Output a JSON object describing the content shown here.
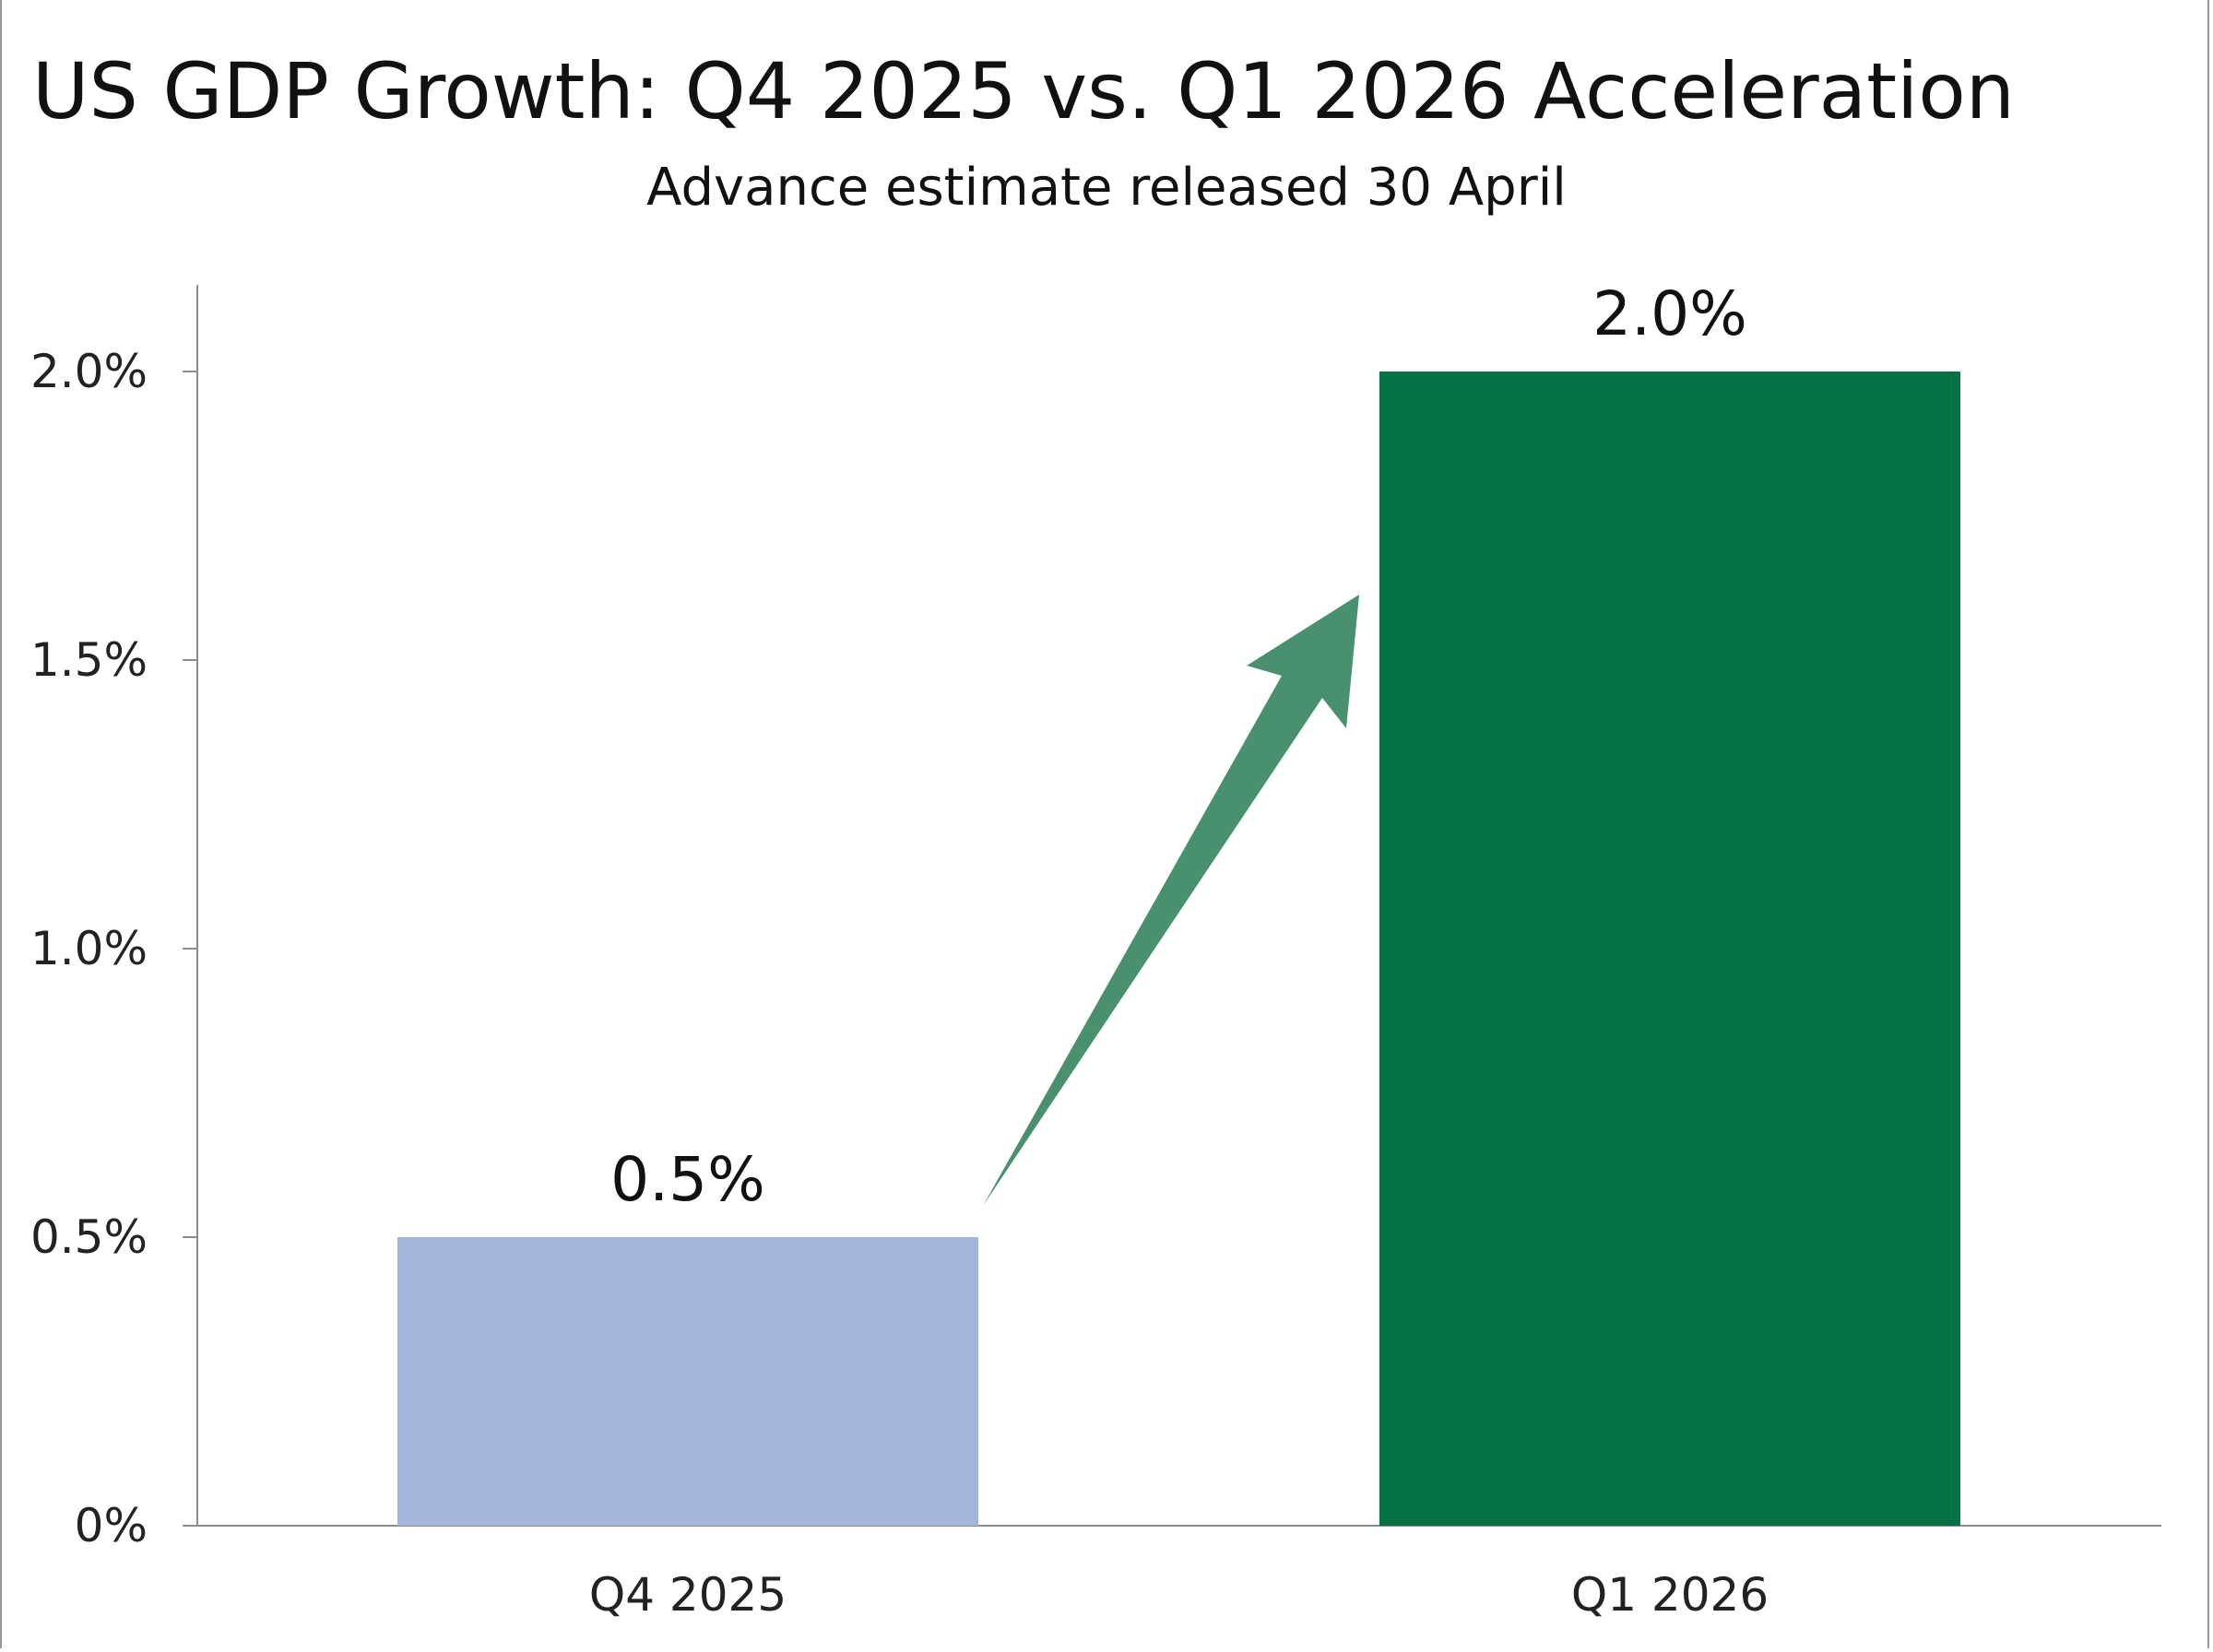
{
  "chart_data": {
    "type": "bar",
    "title": "US GDP Growth: Q4 2025 vs. Q1 2026 Acceleration",
    "subtitle": "Advance estimate released 30 April",
    "categories": [
      "Q4 2025",
      "Q1 2026"
    ],
    "values": [
      0.5,
      2.0
    ],
    "value_labels": [
      "0.5%",
      "2.0%"
    ],
    "bar_colors": [
      "#a1b6d8",
      "#047244"
    ],
    "arrow_color": "#3f8a66",
    "ylim": [
      0,
      2.15
    ],
    "y_ticks": [
      0,
      0.5,
      1.0,
      1.5,
      2.0
    ],
    "y_tick_labels": [
      "0%",
      "0.5%",
      "1.0%",
      "1.5%",
      "2.0%"
    ],
    "xlabel": "",
    "ylabel": "",
    "grid": false,
    "legend": "none",
    "annotation": "arrow from Q4 2025 to Q1 2026 indicating acceleration"
  }
}
